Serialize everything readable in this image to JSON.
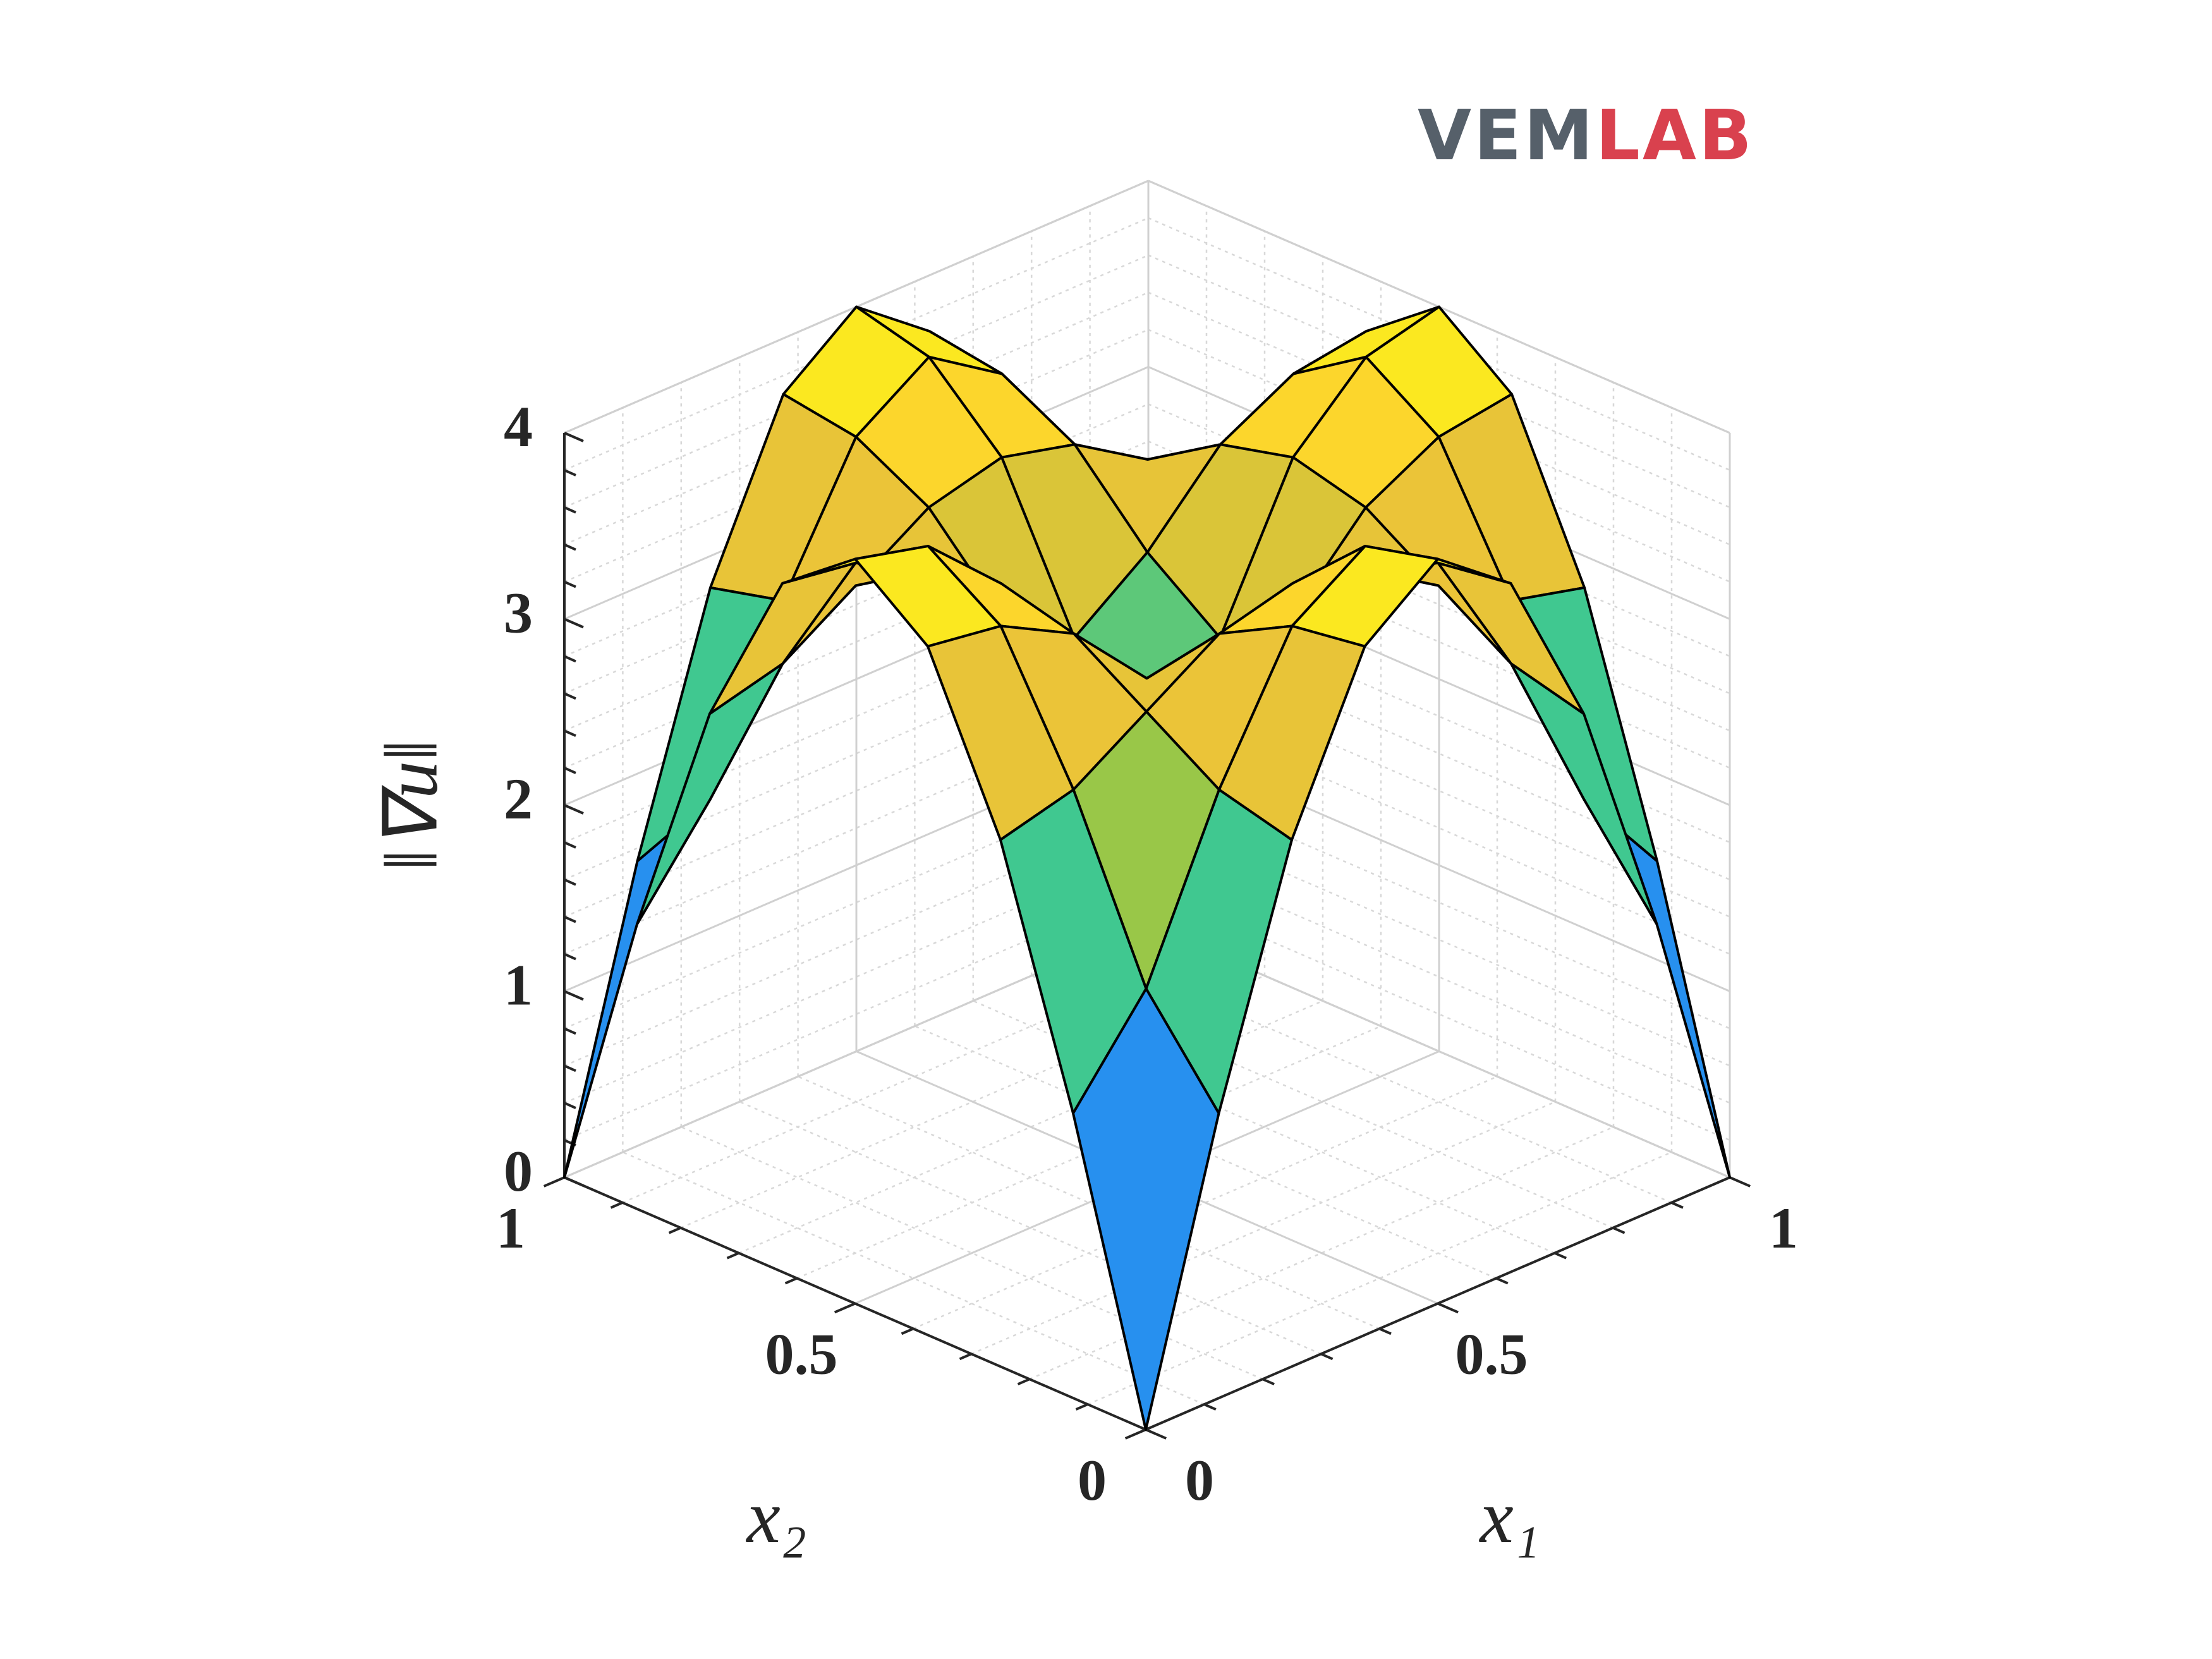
{
  "logo": {
    "part1": "VEM",
    "part2": "LAB"
  },
  "chart_data": {
    "type": "surface",
    "xlabel": "x₁",
    "ylabel": "x₂",
    "zlabel": "‖∇u‖",
    "x": [
      0,
      0.125,
      0.25,
      0.375,
      0.5,
      0.625,
      0.75,
      0.875,
      1
    ],
    "y": [
      0,
      0.125,
      0.25,
      0.375,
      0.5,
      0.625,
      0.75,
      0.875,
      1
    ],
    "z": [
      [
        0,
        1.53,
        2.83,
        3.7,
        4,
        3.7,
        2.83,
        1.53,
        0
      ],
      [
        1.53,
        2.03,
        2.93,
        3.64,
        3.9,
        3.64,
        2.93,
        2.03,
        1.53
      ],
      [
        2.83,
        2.93,
        3.18,
        3.43,
        3.53,
        3.43,
        3.18,
        2.93,
        2.83
      ],
      [
        3.7,
        3.64,
        3.43,
        3.02,
        2.73,
        3.02,
        3.43,
        3.64,
        3.7
      ],
      [
        4,
        3.9,
        3.53,
        2.73,
        1.4,
        2.73,
        3.53,
        3.9,
        4
      ],
      [
        3.7,
        3.64,
        3.43,
        3.02,
        2.73,
        3.02,
        3.43,
        3.64,
        3.7
      ],
      [
        2.83,
        2.93,
        3.18,
        3.43,
        3.53,
        3.43,
        3.18,
        2.93,
        2.83
      ],
      [
        1.53,
        2.03,
        2.93,
        3.64,
        3.9,
        3.64,
        2.93,
        2.03,
        1.53
      ],
      [
        0,
        1.53,
        2.83,
        3.7,
        4,
        3.7,
        2.83,
        1.53,
        0
      ]
    ],
    "xlim": [
      0,
      1
    ],
    "xticks": [
      0,
      0.5,
      1
    ],
    "ylim": [
      0,
      1
    ],
    "yticks": [
      0,
      0.5,
      1
    ],
    "zlim": [
      0,
      4
    ],
    "zticks": [
      0,
      1,
      2,
      3,
      4
    ],
    "xminorticks": [
      0.1,
      0.2,
      0.3,
      0.4,
      0.6,
      0.7,
      0.8,
      0.9
    ],
    "yminorticks": [
      0.1,
      0.2,
      0.3,
      0.4,
      0.6,
      0.7,
      0.8,
      0.9
    ],
    "zminorticks": [
      0.2,
      0.4,
      0.6,
      0.8,
      1.2,
      1.4,
      1.6,
      1.8,
      2.2,
      2.4,
      2.6,
      2.8,
      3.2,
      3.4,
      3.6,
      3.8
    ],
    "grid": true,
    "minor_grid": true,
    "colormap": "parula",
    "edgecolor": "#000000"
  }
}
